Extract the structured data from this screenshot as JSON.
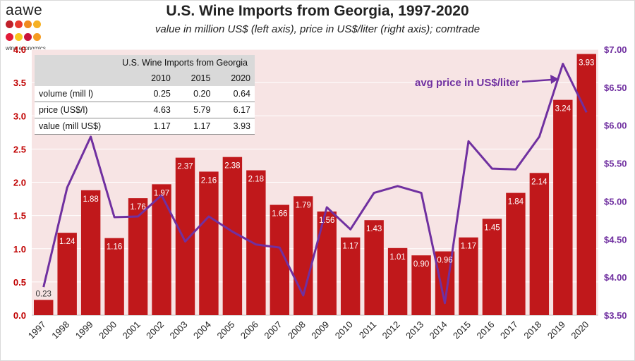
{
  "logo": {
    "word": "aawe",
    "sub": "wine economics",
    "dot_colors": [
      "#c0202a",
      "#e8392e",
      "#f08a1e",
      "#f6b124",
      "#e31b38",
      "#f7c61f",
      "#c8143c",
      "#f59b22"
    ]
  },
  "title": "U.S. Wine Imports from Georgia, 1997-2020",
  "subtitle": "value in million US$ (left axis), price in US$/liter (right axis); comtrade",
  "annotation": "avg price in US$/liter",
  "colors": {
    "bar": "#c0181b",
    "line": "#7030a0",
    "plot_bg": "#f7e4e4",
    "left_axis": "#c00000",
    "right_axis": "#7030a0"
  },
  "table": {
    "title": "U.S. Wine Imports from Georgia",
    "years": [
      "2010",
      "2015",
      "2020"
    ],
    "rows": [
      {
        "label": "volume (mill l)",
        "values": [
          "0.25",
          "0.20",
          "0.64"
        ]
      },
      {
        "label": "price (US$/l)",
        "values": [
          "4.63",
          "5.79",
          "6.17"
        ]
      },
      {
        "label": "value (mill US$)",
        "values": [
          "1.17",
          "1.17",
          "3.93"
        ]
      }
    ]
  },
  "chart_data": {
    "type": "bar",
    "categories": [
      "1997",
      "1998",
      "1999",
      "2000",
      "2001",
      "2002",
      "2003",
      "2004",
      "2005",
      "2006",
      "2007",
      "2008",
      "2009",
      "2010",
      "2011",
      "2012",
      "2013",
      "2014",
      "2015",
      "2016",
      "2017",
      "2018",
      "2019",
      "2020"
    ],
    "bar_labels": [
      "0.23",
      "1.24",
      "1.88",
      "1.16",
      "1.76",
      "1.97",
      "2.37",
      "2.16",
      "2.38",
      "2.18",
      "1.66",
      "1.79",
      "1.56",
      "1.17",
      "1.43",
      "1.01",
      "0.90",
      "0.96",
      "1.17",
      "1.45",
      "1.84",
      "2.14",
      "3.24",
      "3.93"
    ],
    "series": [
      {
        "type": "bar",
        "axis": "left",
        "values": [
          0.23,
          1.24,
          1.88,
          1.16,
          1.76,
          1.97,
          2.37,
          2.16,
          2.38,
          2.18,
          1.66,
          1.79,
          1.56,
          1.17,
          1.43,
          1.01,
          0.9,
          0.96,
          1.17,
          1.45,
          1.84,
          2.14,
          3.24,
          3.93
        ]
      },
      {
        "type": "line",
        "axis": "right",
        "name": "avg price in US$/liter",
        "values": [
          3.87,
          5.18,
          5.85,
          4.79,
          4.8,
          5.08,
          4.47,
          4.8,
          4.6,
          4.43,
          4.39,
          3.76,
          4.92,
          4.63,
          5.11,
          5.2,
          5.11,
          3.66,
          5.79,
          5.43,
          5.42,
          5.85,
          6.81,
          6.17
        ]
      }
    ],
    "y_left": {
      "ylim": [
        0,
        4.0
      ],
      "ticks": [
        "0.0",
        "0.5",
        "1.0",
        "1.5",
        "2.0",
        "2.5",
        "3.0",
        "3.5",
        "4.0"
      ]
    },
    "y_right": {
      "ylim": [
        3.5,
        7.0
      ],
      "ticks": [
        "$3.50",
        "$4.00",
        "$4.50",
        "$5.00",
        "$5.50",
        "$6.00",
        "$6.50",
        "$7.00"
      ]
    },
    "grid": true
  }
}
